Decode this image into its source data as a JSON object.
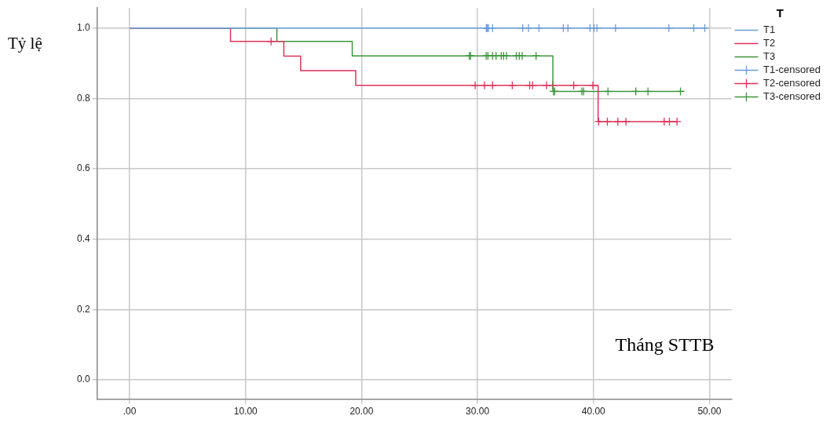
{
  "chart_data": {
    "type": "step",
    "xlabel": "Tháng STTB",
    "ylabel": "Tỷ lệ",
    "legend_title": "T",
    "legend": "right",
    "grid": true,
    "xlim": [
      -2.8,
      51.9
    ],
    "ylim": [
      -0.055,
      1.057
    ],
    "xticks": [
      {
        "value": 0,
        "label": ".00"
      },
      {
        "value": 10,
        "label": "10.00"
      },
      {
        "value": 20,
        "label": "20.00"
      },
      {
        "value": 30,
        "label": "30.00"
      },
      {
        "value": 40,
        "label": "40.00"
      },
      {
        "value": 50,
        "label": "50.00"
      }
    ],
    "yticks": [
      {
        "value": 0,
        "label": "0.0"
      },
      {
        "value": 0.2,
        "label": "0.2"
      },
      {
        "value": 0.4,
        "label": "0.4"
      },
      {
        "value": 0.6,
        "label": "0.6"
      },
      {
        "value": 0.8,
        "label": "0.8"
      },
      {
        "value": 1,
        "label": "1.0"
      }
    ],
    "series": [
      {
        "name": "T1",
        "color": "#6b9bd9",
        "x": [
          0,
          49.6
        ],
        "values": [
          1,
          1
        ]
      },
      {
        "name": "T2",
        "color": "#e0325a",
        "x": [
          0,
          8.7,
          13.3,
          14.75,
          19.5,
          40.4,
          47.2
        ],
        "values": [
          1,
          0.962,
          0.92,
          0.879,
          0.837,
          0.734,
          0.734
        ]
      },
      {
        "name": "T3",
        "color": "#3c963c",
        "x": [
          0,
          12.7,
          19.2,
          36.5,
          47.8
        ],
        "values": [
          1,
          0.962,
          0.921,
          0.82,
          0.82
        ]
      },
      {
        "name": "T1-censored",
        "type": "scatter",
        "marker": "cross",
        "color": "#6b9bd9",
        "x": [
          30.76,
          30.85,
          30.95,
          31.3,
          33.9,
          34.4,
          35.3,
          37.4,
          37.8,
          39.7,
          40.05,
          40.3,
          41.9,
          46.5,
          48.65,
          49.6
        ],
        "values": [
          1,
          1,
          1,
          1,
          1,
          1,
          1,
          1,
          1,
          1,
          1,
          1,
          1,
          1,
          1,
          1
        ]
      },
      {
        "name": "T2-censored",
        "type": "scatter",
        "marker": "cross",
        "color": "#e0325a",
        "x": [
          12.2,
          29.8,
          30.6,
          31.3,
          33.0,
          34.5,
          34.75,
          35.95,
          36.5,
          38.3,
          39.95,
          40.45,
          41.2,
          42.1,
          42.8,
          46.1,
          46.55,
          47.2
        ],
        "values": [
          0.962,
          0.837,
          0.837,
          0.837,
          0.837,
          0.837,
          0.837,
          0.837,
          0.837,
          0.837,
          0.837,
          0.734,
          0.734,
          0.734,
          0.734,
          0.734,
          0.734,
          0.734
        ]
      },
      {
        "name": "T3-censored",
        "type": "scatter",
        "marker": "cross",
        "color": "#3c963c",
        "x": [
          29.3,
          29.4,
          30.75,
          30.9,
          31.3,
          31.6,
          32.05,
          32.25,
          32.5,
          33.35,
          33.6,
          33.85,
          35.05,
          36.55,
          36.65,
          39.0,
          39.15,
          41.25,
          43.65,
          44.7,
          47.5
        ],
        "values": [
          0.921,
          0.921,
          0.921,
          0.921,
          0.921,
          0.921,
          0.921,
          0.921,
          0.921,
          0.921,
          0.921,
          0.921,
          0.921,
          0.82,
          0.82,
          0.82,
          0.82,
          0.82,
          0.82,
          0.82,
          0.82
        ]
      }
    ]
  }
}
